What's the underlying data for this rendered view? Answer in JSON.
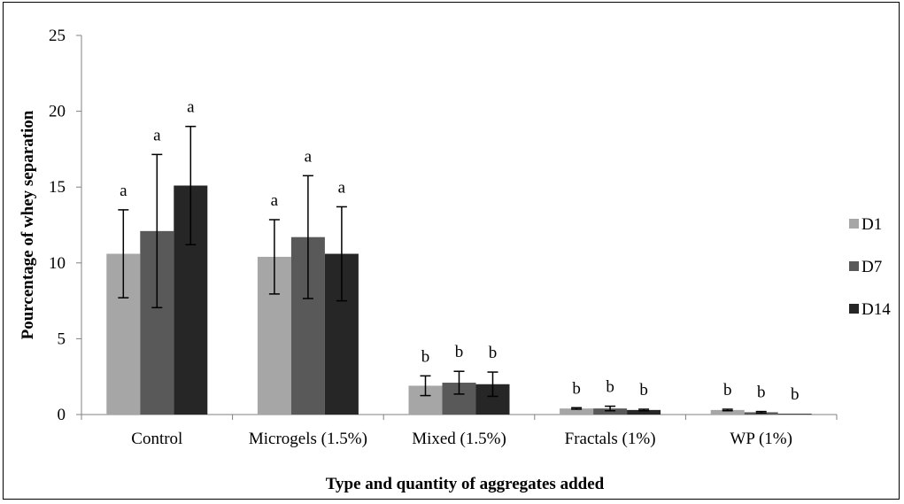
{
  "chart_data": {
    "type": "bar",
    "title": "",
    "xlabel": "Type and quantity of aggregates added",
    "ylabel": "Pourcentage of whey separation",
    "ylim": [
      0,
      25
    ],
    "yticks": [
      0,
      5,
      10,
      15,
      20,
      25
    ],
    "grid": false,
    "legend_position": "right",
    "categories": [
      "Control",
      "Microgels (1.5%)",
      "Mixed (1.5%)",
      "Fractals (1%)",
      "WP (1%)"
    ],
    "series": [
      {
        "name": "D1",
        "color": "#a6a6a6",
        "values": [
          10.6,
          10.4,
          1.9,
          0.4,
          0.3
        ],
        "errors": [
          2.9,
          2.45,
          0.65,
          0.05,
          0.05
        ],
        "labels": [
          "a",
          "a",
          "b",
          "b",
          "b"
        ]
      },
      {
        "name": "D7",
        "color": "#595959",
        "values": [
          12.1,
          11.7,
          2.1,
          0.4,
          0.15
        ],
        "errors": [
          5.05,
          4.05,
          0.75,
          0.15,
          0.05
        ],
        "labels": [
          "a",
          "a",
          "b",
          "b",
          "b"
        ]
      },
      {
        "name": "D14",
        "color": "#262626",
        "values": [
          15.1,
          10.6,
          2.0,
          0.3,
          0.05
        ],
        "errors": [
          3.9,
          3.1,
          0.8,
          0.05,
          0.0
        ],
        "labels": [
          "a",
          "a",
          "b",
          "b",
          "b"
        ]
      }
    ]
  }
}
